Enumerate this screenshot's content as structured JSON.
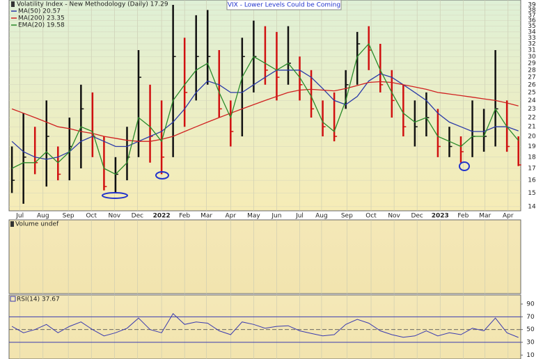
{
  "chart_data": [
    {
      "type": "ohlc",
      "title": "VIX - Lower Levels Could be Coming",
      "label": "Volatility Index - New Methodology (Daily) 17.29",
      "high": [
        19,
        22.5,
        21,
        24,
        19,
        22,
        26,
        25,
        20,
        18,
        21,
        31,
        26,
        24,
        39,
        33,
        37,
        38,
        31,
        24,
        33,
        36,
        35,
        34,
        35,
        30,
        28,
        24,
        25,
        28,
        34,
        35,
        32,
        28,
        26,
        24,
        25,
        23,
        21,
        20,
        24,
        23,
        31,
        24,
        20
      ],
      "low": [
        15,
        14.2,
        16.5,
        15.5,
        16,
        16,
        17,
        18,
        15.2,
        15,
        16,
        18,
        17.5,
        16.5,
        18,
        21,
        24,
        26,
        22,
        19,
        20,
        25,
        26,
        24,
        26,
        24,
        22,
        20,
        19.5,
        23,
        26,
        28,
        25,
        22,
        20,
        19,
        20,
        18,
        18,
        17.5,
        18,
        18.5,
        19,
        18.5,
        17.2
      ],
      "close": [
        16,
        18,
        17.5,
        20,
        16.5,
        19,
        23,
        20,
        15.5,
        16.5,
        18,
        27,
        20,
        18,
        30,
        25,
        30,
        30,
        23,
        20.5,
        30,
        30,
        28,
        27,
        29,
        26,
        23,
        21,
        20,
        26,
        32,
        31,
        26,
        24,
        21,
        21,
        22,
        19,
        19,
        18.5,
        20,
        20,
        23,
        19,
        17.3
      ],
      "up_color": "#111111",
      "down_color": "#d01010",
      "series": [
        {
          "name": "MA(50) 20.57",
          "color": "#2a3aa8",
          "values": [
            19.5,
            18.5,
            18,
            17.8,
            18,
            18.5,
            19.5,
            20,
            19.5,
            19,
            19,
            19.5,
            20,
            20.5,
            21.5,
            23,
            25,
            26.5,
            26,
            25,
            25,
            26,
            27,
            28,
            28,
            28,
            27,
            25.5,
            24,
            23.5,
            24.5,
            26.5,
            27.5,
            27,
            26,
            25,
            24,
            22.5,
            21.5,
            21,
            20.5,
            20.5,
            21,
            21,
            20.57
          ]
        },
        {
          "name": "MA(200) 23.35",
          "color": "#d02020",
          "values": [
            23,
            22.5,
            22,
            21.5,
            21,
            20.8,
            20.5,
            20.3,
            20,
            19.8,
            19.6,
            19.5,
            19.5,
            19.7,
            20,
            20.5,
            21,
            21.5,
            22,
            22.5,
            23,
            23.5,
            24,
            24.5,
            25,
            25.3,
            25.4,
            25.3,
            25.2,
            25.5,
            25.9,
            26.3,
            26.4,
            26.3,
            26,
            25.7,
            25.4,
            25,
            24.8,
            24.6,
            24.4,
            24.2,
            24,
            23.7,
            23.35
          ]
        },
        {
          "name": "EMA(20) 19.58",
          "color": "#2a8a2a",
          "values": [
            17,
            17.5,
            17.5,
            18.5,
            17.5,
            18.5,
            21,
            20.5,
            17,
            16.5,
            17.5,
            22,
            21,
            19.5,
            24,
            26,
            28,
            29,
            25,
            22,
            27,
            30,
            29,
            28,
            29,
            27,
            24.5,
            21.5,
            20.5,
            24,
            30,
            32,
            28,
            25,
            22.5,
            21.5,
            22,
            20,
            19.5,
            19,
            20,
            20,
            23,
            21,
            19.58
          ]
        }
      ],
      "log": true,
      "ylim": [
        13.8,
        39.7
      ],
      "yticks": [
        14,
        15,
        16,
        17,
        18,
        19,
        20,
        21,
        22,
        23,
        24,
        25,
        26,
        27,
        28,
        29,
        30,
        31,
        32,
        33,
        34,
        35,
        36,
        37,
        38,
        39
      ],
      "xlim": [
        -0.25,
        44.2
      ],
      "xticks": [
        {
          "value": 0.7,
          "label": "Jul"
        },
        {
          "value": 2.7,
          "label": "Aug"
        },
        {
          "value": 4.9,
          "label": "Sep"
        },
        {
          "value": 6.9,
          "label": "Oct"
        },
        {
          "value": 8.9,
          "label": "Nov"
        },
        {
          "value": 10.9,
          "label": "Dec"
        },
        {
          "value": 13,
          "label": "2022"
        },
        {
          "value": 15,
          "label": "Feb"
        },
        {
          "value": 16.9,
          "label": "Mar"
        },
        {
          "value": 19,
          "label": "Apr"
        },
        {
          "value": 21,
          "label": "May"
        },
        {
          "value": 23,
          "label": "Jun"
        },
        {
          "value": 25,
          "label": "Jul"
        },
        {
          "value": 26.9,
          "label": "Aug"
        },
        {
          "value": 29.1,
          "label": "Sep"
        },
        {
          "value": 31.2,
          "label": "Oct"
        },
        {
          "value": 33.2,
          "label": "Nov"
        },
        {
          "value": 35.2,
          "label": "Dec"
        },
        {
          "value": 37.2,
          "label": "2023"
        },
        {
          "value": 39.2,
          "label": "Feb"
        },
        {
          "value": 41.1,
          "label": "Mar"
        },
        {
          "value": 43.1,
          "label": "Apr"
        }
      ]
    },
    {
      "type": "volume",
      "label": "Volume undef"
    },
    {
      "type": "line",
      "label": "RSI(14) 37.67",
      "color": "#3a3ab0",
      "values": [
        55,
        45,
        50,
        58,
        45,
        55,
        62,
        50,
        40,
        45,
        52,
        68,
        50,
        45,
        75,
        58,
        62,
        60,
        48,
        42,
        62,
        58,
        52,
        55,
        56,
        48,
        44,
        40,
        42,
        58,
        66,
        60,
        48,
        42,
        38,
        40,
        48,
        40,
        45,
        42,
        52,
        48,
        68,
        45,
        37.67
      ],
      "ylim": [
        6,
        102
      ],
      "yticks": [
        10,
        30,
        50,
        70,
        90
      ],
      "levels": [
        70,
        30
      ],
      "midline": 50
    }
  ]
}
